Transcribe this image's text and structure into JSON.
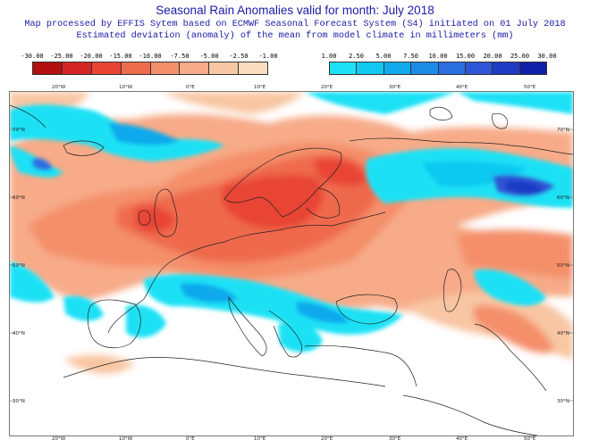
{
  "header": {
    "title": "Seasonal Rain Anomalies valid for month: July 2018",
    "line1": "Map processed by EFFIS Sytem based on ECMWF Seasonal Forecast System (S4) initiated on 01 July 2018",
    "line2": "Estimated deviation (anomaly) of the mean from model climate in millimeters (mm)"
  },
  "legend": {
    "negative": {
      "ticks": [
        "-30.00",
        "-25.00",
        "-20.00",
        "-15.00",
        "-10.00",
        "-7.50",
        "-5.00",
        "-2.50",
        "-1.00"
      ],
      "colors": [
        "#b30f0f",
        "#d42525",
        "#e84434",
        "#ef6b4d",
        "#f48f6b",
        "#f7ab88",
        "#f8c6a3",
        "#fadcbf"
      ]
    },
    "positive": {
      "ticks": [
        "1.00",
        "2.50",
        "5.00",
        "7.50",
        "10.00",
        "15.00",
        "20.00",
        "25.00",
        "30.00"
      ],
      "colors": [
        "#1ee1f5",
        "#10c8f0",
        "#11a9ec",
        "#1d8ce7",
        "#2a6ee0",
        "#2d55d6",
        "#1f3bc4",
        "#0f1fa8"
      ]
    }
  },
  "map": {
    "lon_labels": [
      "20°W",
      "10°W",
      "0°E",
      "10°E",
      "20°E",
      "30°E",
      "40°E",
      "50°E"
    ],
    "lat_labels": [
      "70°N",
      "60°N",
      "50°N",
      "40°N",
      "30°N"
    ]
  }
}
